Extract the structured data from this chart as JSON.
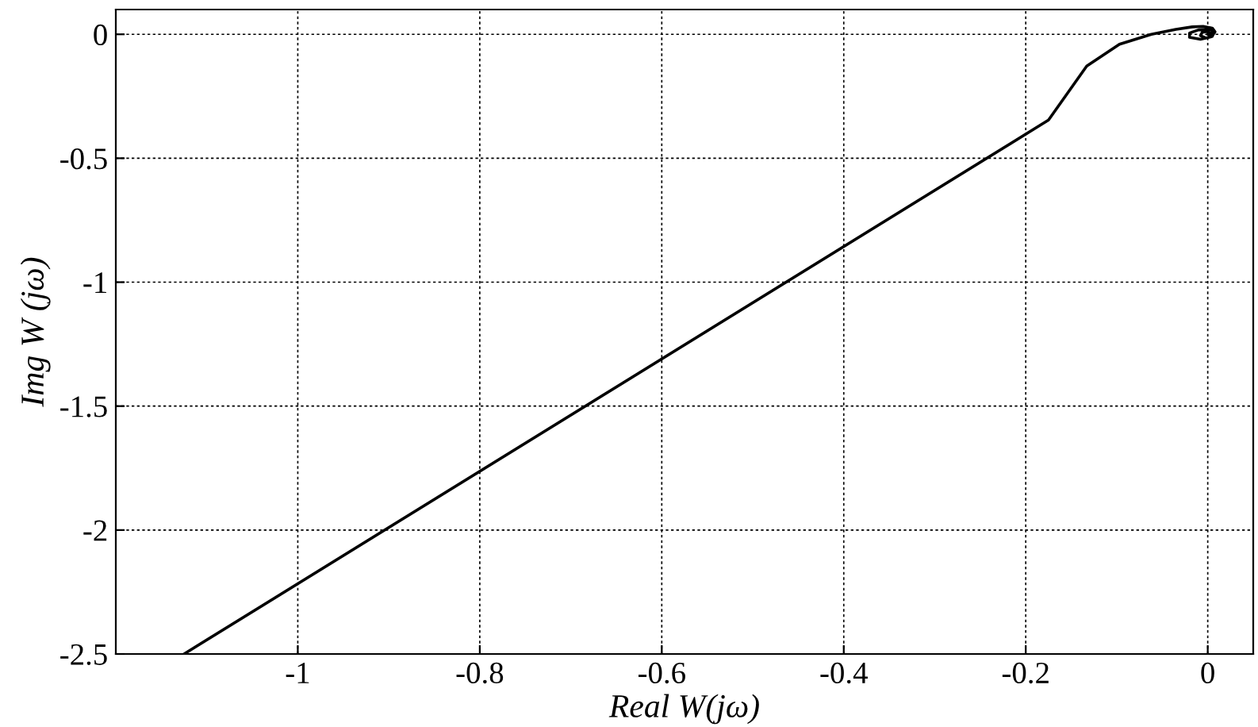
{
  "chart_data": {
    "type": "line",
    "xlabel": "Real W(jω)",
    "ylabel": "Img W (jω)",
    "series": [
      {
        "color": "#000000",
        "x": [
          -1.125,
          -0.175,
          -0.133,
          -0.097,
          -0.062,
          -0.035,
          -0.017,
          -0.005,
          0.005,
          0.008,
          0.004,
          -0.008,
          -0.02,
          -0.02,
          -0.01,
          0.003,
          0.007,
          0.005,
          -0.002,
          -0.008,
          -0.006,
          0.0,
          0.004,
          0.002,
          0.0
        ],
        "values": [
          -2.5,
          -0.346,
          -0.128,
          -0.04,
          0.0,
          0.02,
          0.03,
          0.032,
          0.025,
          0.01,
          -0.01,
          -0.02,
          -0.012,
          0.005,
          0.018,
          0.02,
          0.008,
          -0.008,
          -0.015,
          -0.005,
          0.008,
          0.012,
          0.002,
          -0.004,
          0.0
        ]
      }
    ],
    "xlim": [
      -1.2,
      0.05
    ],
    "ylim": [
      -2.5,
      0.1
    ],
    "xticks": [
      -1,
      -0.8,
      -0.6,
      -0.4,
      -0.2,
      0
    ],
    "yticks": [
      -2.5,
      -2,
      -1.5,
      -1,
      -0.5,
      0
    ],
    "grid": true,
    "legend": false,
    "marker": "none",
    "line_style": "solid"
  }
}
